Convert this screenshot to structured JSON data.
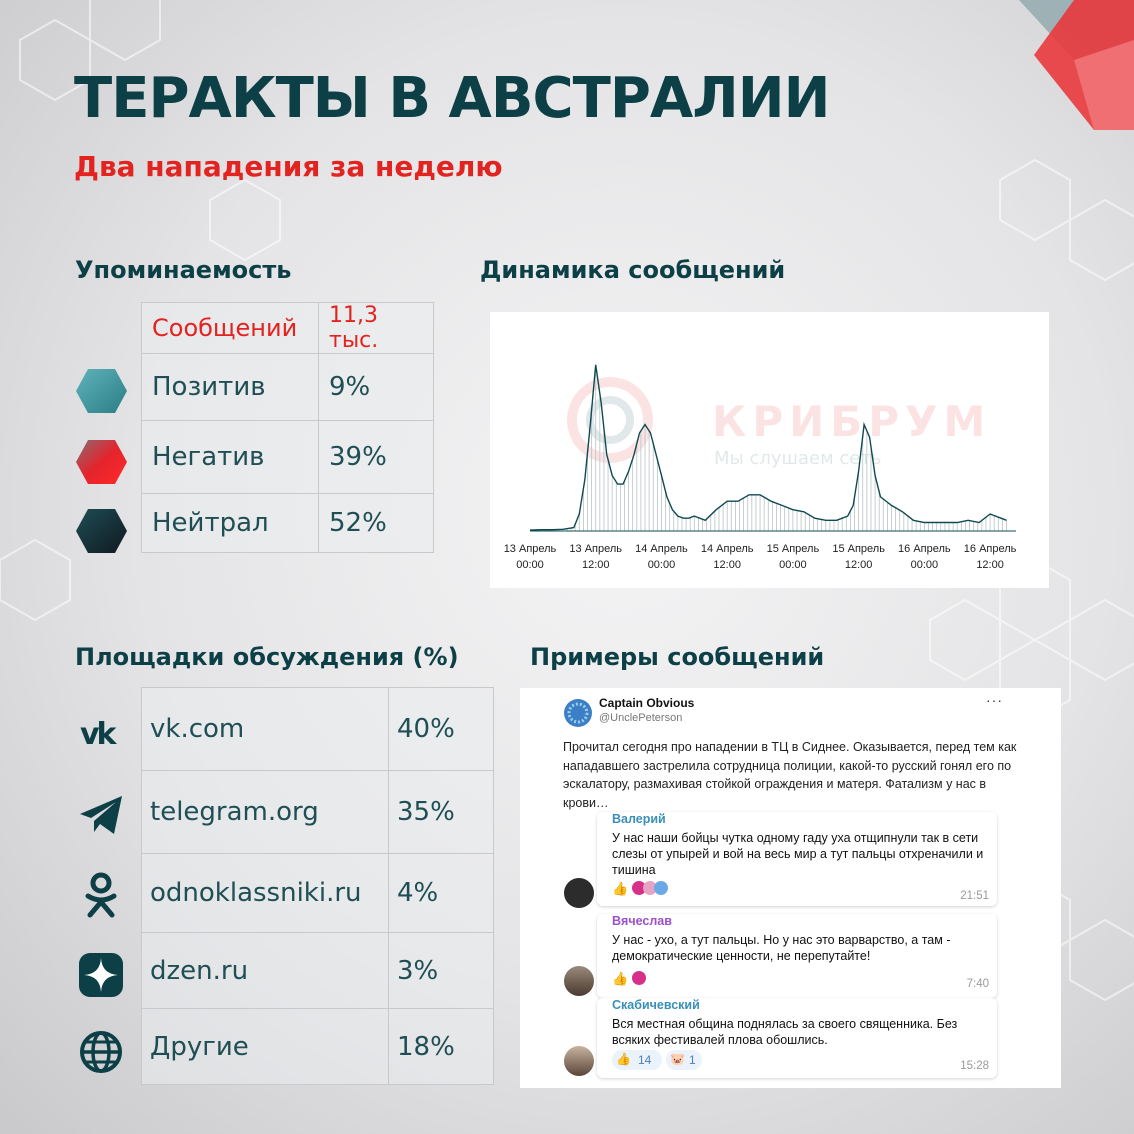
{
  "header": {
    "title": "ТЕРАКТЫ В АВСТРАЛИИ",
    "subtitle": "Два нападения за неделю"
  },
  "sections": {
    "mentions": "Упоминаемость",
    "dynamics": "Динамика сообщений",
    "platforms": "Площадки обсуждения (%)",
    "examples": "Примеры сообщений"
  },
  "mentions_table": {
    "total_label": "Сообщений",
    "total_value": "11,3 тыс.",
    "rows": [
      {
        "label": "Позитив",
        "value": "9%",
        "icon": "positive-hex-icon",
        "color": "#3f979c"
      },
      {
        "label": "Негатив",
        "value": "39%",
        "icon": "negative-hex-icon",
        "color": "#e4242c"
      },
      {
        "label": "Нейтрал",
        "value": "52%",
        "icon": "neutral-hex-icon",
        "color": "#163a40"
      }
    ]
  },
  "chart_data": {
    "type": "area",
    "title": "",
    "xlabel": "",
    "ylabel": "",
    "x_tick_labels": [
      [
        "13 Апрель",
        "00:00"
      ],
      [
        "13 Апрель",
        "12:00"
      ],
      [
        "14 Апрель",
        "00:00"
      ],
      [
        "14 Апрель",
        "12:00"
      ],
      [
        "15 Апрель",
        "00:00"
      ],
      [
        "15 Апрель",
        "12:00"
      ],
      [
        "16 Апрель",
        "00:00"
      ],
      [
        "16 Апрель",
        "12:00"
      ]
    ],
    "x_hours": [
      0,
      2,
      4,
      6,
      8,
      9,
      10,
      11,
      12,
      13,
      14,
      15,
      16,
      17,
      18,
      19,
      20,
      21,
      22,
      23,
      24,
      25,
      26,
      27,
      28,
      29,
      30,
      32,
      34,
      36,
      38,
      40,
      42,
      44,
      46,
      48,
      50,
      52,
      54,
      56,
      57,
      58,
      59,
      60,
      61,
      62,
      63,
      64,
      66,
      68,
      70,
      72,
      74,
      76,
      78,
      80,
      82,
      84,
      86,
      87
    ],
    "values": [
      2,
      3,
      3,
      4,
      8,
      40,
      120,
      250,
      390,
      300,
      180,
      130,
      110,
      110,
      140,
      180,
      230,
      250,
      230,
      180,
      130,
      80,
      50,
      35,
      30,
      30,
      35,
      25,
      50,
      70,
      70,
      85,
      85,
      70,
      60,
      50,
      45,
      30,
      25,
      25,
      30,
      35,
      60,
      140,
      250,
      220,
      130,
      80,
      60,
      45,
      25,
      20,
      20,
      20,
      20,
      25,
      20,
      40,
      30,
      25
    ],
    "ylim": [
      0,
      420
    ],
    "watermark_brand": "КРИБРУМ",
    "watermark_tagline": "Мы слушаем сеть",
    "line_color": "#0f4a52"
  },
  "platforms_table": {
    "rows": [
      {
        "label": "vk.com",
        "value": "40%",
        "icon": "vk-icon"
      },
      {
        "label": "telegram.org",
        "value": "35%",
        "icon": "telegram-icon"
      },
      {
        "label": "odnoklassniki.ru",
        "value": "4%",
        "icon": "odnoklassniki-icon"
      },
      {
        "label": "dzen.ru",
        "value": "3%",
        "icon": "dzen-icon"
      },
      {
        "label": "Другие",
        "value": "18%",
        "icon": "globe-icon"
      }
    ]
  },
  "messages": {
    "post": {
      "name": "Captain Obvious",
      "handle": "@UnclePeterson",
      "text": "Прочитал сегодня про нападении в ТЦ в Сиднее. Оказывается, перед тем как нападавшего застрелила сотрудница полиции, какой-то русский гонял его по эскалатору, размахивая стойкой ограждения и матеря. Фатализм у нас в крови…",
      "menu": "···"
    },
    "replies": [
      {
        "name": "Валерий",
        "name_color": "#3a8fb7",
        "text": "У нас наши бойцы чутка одному гаду уха отщипнули так в сети слезы от упырей и вой на весь мир а тут пальцы отхреначили и тишина",
        "time": "21:51"
      },
      {
        "name": "Вячеслав",
        "name_color": "#9b51c9",
        "text": "У нас - ухо, а тут пальцы. Но у нас это варварство, а там - демократические ценности, не перепутайте!",
        "time": "7:40"
      },
      {
        "name": "Скабичевский",
        "name_color": "#3a8fb7",
        "text": "Вся местная община поднялась за своего священника. Без всяких фестивалей плова обошлись.",
        "time": "15:28"
      }
    ],
    "reactions": {
      "likes": "14",
      "pigs": "1"
    }
  },
  "colors": {
    "accent_red": "#e32320",
    "dark_teal": "#0c3f46"
  }
}
